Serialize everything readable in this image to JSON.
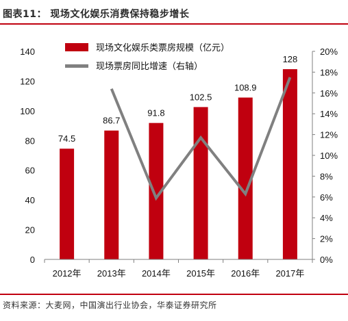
{
  "header": {
    "title": "图表11：  现场文化娱乐消费保持稳步增长"
  },
  "footer": {
    "source": "资料来源：大麦网，中国演出行业协会，华泰证券研究所"
  },
  "colors": {
    "bar": "#c0000f",
    "line": "#808080",
    "accent_rule": "#c0000f"
  },
  "chart_data": {
    "type": "bar",
    "title": "",
    "categories": [
      "2012年",
      "2013年",
      "2014年",
      "2015年",
      "2016年",
      "2017年"
    ],
    "series": [
      {
        "name": "现场文化娱乐类票房规模（亿元）",
        "type": "bar",
        "axis": "left",
        "values": [
          74.5,
          86.7,
          91.8,
          102.5,
          108.9,
          128
        ],
        "data_labels": [
          "74.5",
          "86.7",
          "91.8",
          "102.5",
          "108.9",
          "128"
        ]
      },
      {
        "name": "现场票房同比增速（右轴）",
        "type": "line",
        "axis": "right",
        "values": [
          null,
          0.164,
          0.059,
          0.117,
          0.063,
          0.175
        ]
      }
    ],
    "y_left": {
      "min": 0,
      "max": 140,
      "ticks": [
        "0",
        "20",
        "40",
        "60",
        "80",
        "100",
        "120",
        "140"
      ]
    },
    "y_right": {
      "min": 0,
      "max": 0.2,
      "ticks": [
        "0%",
        "2%",
        "4%",
        "6%",
        "8%",
        "10%",
        "12%",
        "14%",
        "16%",
        "18%",
        "20%"
      ]
    },
    "grid": false,
    "legend_position": "top-left"
  }
}
